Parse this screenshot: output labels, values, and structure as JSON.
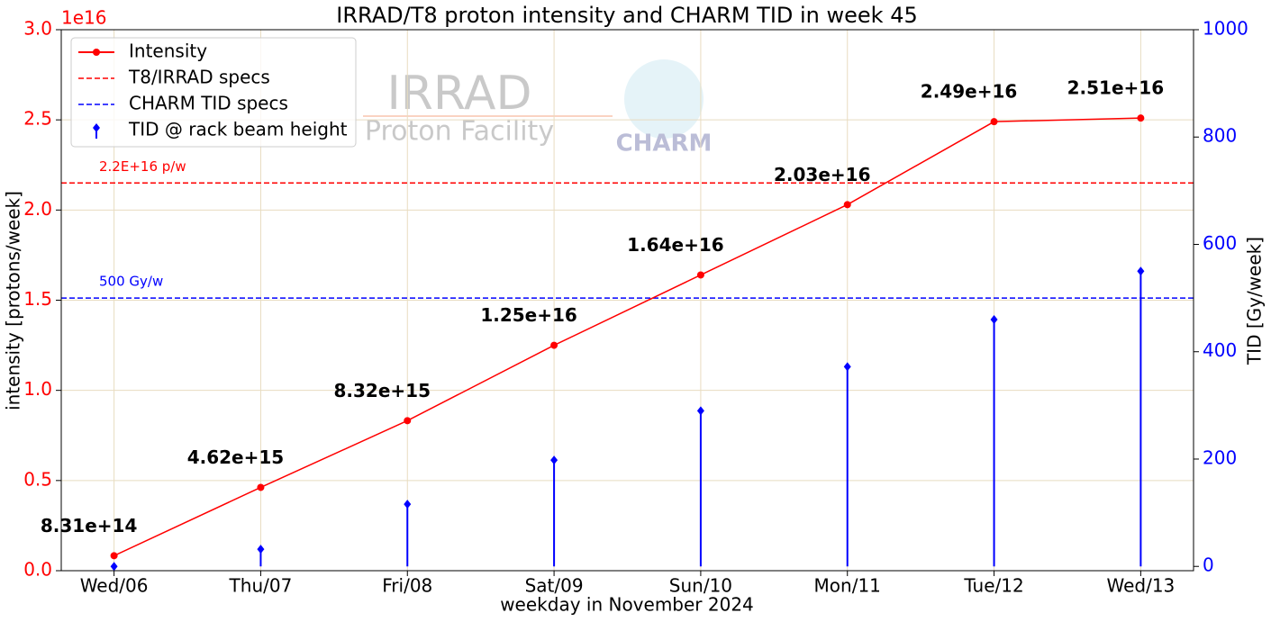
{
  "chart_data": {
    "type": "line",
    "title": "IRRAD/T8 proton intensity and CHARM TID in week 45",
    "x_label": "weekday in November 2024",
    "y_label": "intensity [protons/week]",
    "y2_label": "TID [Gy/week]",
    "y_offset_label": "1e16",
    "categories": [
      "Wed/06",
      "Thu/07",
      "Fri/08",
      "Sat/09",
      "Sun/10",
      "Mon/11",
      "Tue/12",
      "Wed/13"
    ],
    "series": [
      {
        "name": "Intensity",
        "color": "#ff0000",
        "values": [
          0.0831,
          0.462,
          0.832,
          1.25,
          1.64,
          2.03,
          2.49,
          2.51
        ],
        "value_labels": [
          "8.31e+14",
          "4.62e+15",
          "8.32e+15",
          "1.25e+16",
          "1.64e+16",
          "2.03e+16",
          "2.49e+16",
          "2.51e+16"
        ]
      },
      {
        "name": "TID @ rack beam height",
        "color": "#0000ff",
        "axis": "y2",
        "marker": "stem",
        "values": [
          0,
          32,
          116,
          198,
          290,
          372,
          460,
          550
        ]
      }
    ],
    "reference_lines": [
      {
        "name": "T8/IRRAD specs",
        "color": "#ff0000",
        "axis": "y",
        "value": 2.15,
        "label": "2.2E+16 p/w"
      },
      {
        "name": "CHARM TID specs",
        "color": "#0000ff",
        "axis": "y2",
        "value": 500,
        "label": "500 Gy/w"
      }
    ],
    "ylim": [
      0,
      3
    ],
    "yticks": [
      {
        "value": 0,
        "label": "0.0"
      },
      0.5,
      {
        "value": 1,
        "label": "1.0"
      },
      1.5,
      {
        "value": 2,
        "label": "2.0"
      },
      2.5,
      {
        "value": 3,
        "label": "3.0"
      }
    ],
    "y2lim": [
      -8,
      1000
    ],
    "y2ticks": [
      0,
      200,
      400,
      600,
      800,
      1000
    ],
    "grid": true,
    "legend": "upper left",
    "watermark": {
      "irrad": "IRRAD",
      "irrad_sub": "Proton Facility",
      "charm": "CHARM"
    }
  }
}
